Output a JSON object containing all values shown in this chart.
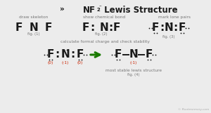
{
  "bg_color": "#ececec",
  "arrow_color": "#1a7a00",
  "red_color": "#cc2200",
  "dark_color": "#1a1a1a",
  "gray_color": "#777777",
  "watermark": "© Rootmemory.com",
  "title_chevron_left": "»",
  "title_chevron_right": "«",
  "title_nf": "NF",
  "title_sub": "2",
  "title_charge": "⁻",
  "title_rest": " Lewis Structure",
  "label1": "draw skeleton",
  "label2": "show chemical bond",
  "label3": "mark lone pairs",
  "label4": "calculate formal charge and check stability",
  "label5": "most stable lewis structure",
  "fig1": "fig. (1)",
  "fig2": "fig. (2)",
  "fig3": "fig. (3)",
  "fig4": "fig. (4)"
}
